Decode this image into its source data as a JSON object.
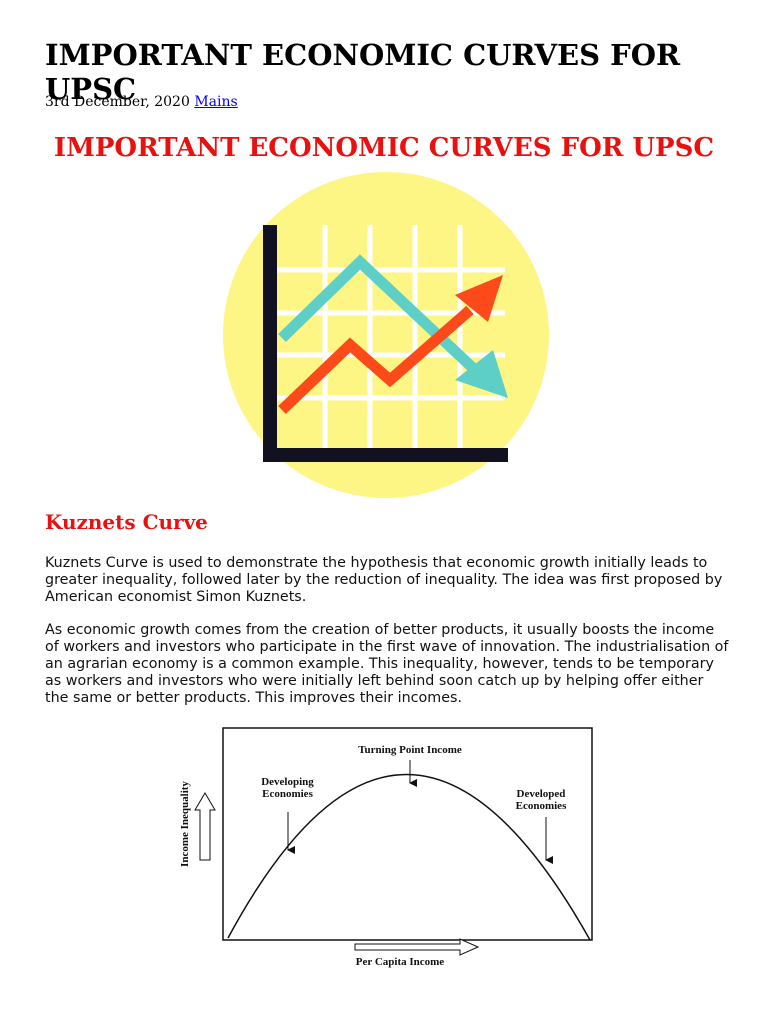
{
  "header": {
    "title": "IMPORTANT ECONOMIC CURVES FOR UPSC",
    "date": "3rd December, 2020",
    "category_link": "Mains"
  },
  "article": {
    "heading": "IMPORTANT ECONOMIC CURVES FOR UPSC",
    "section_heading": "Kuznets Curve",
    "paragraphs": [
      "Kuznets Curve is used to demonstrate the hypothesis that economic growth initially leads to greater inequality, followed later by the reduction of inequality. The idea was first proposed by American economist Simon Kuznets.",
      "As economic growth comes from the creation of better products, it usually boosts the income of workers and investors who participate in the first wave of innovation. The industrialisation of an agrarian economy is a common example. This inequality, however, tends to be temporary as workers and investors who were initially left behind soon catch up by helping offer either the same or better products. This improves their incomes."
    ],
    "figure": {
      "peak_label": "Turning Point Income",
      "left_label": "Developing Economies",
      "right_label": "Developed Economies",
      "y_axis_label": "Income Inequality",
      "x_axis_label": "Per Capita Income"
    }
  }
}
